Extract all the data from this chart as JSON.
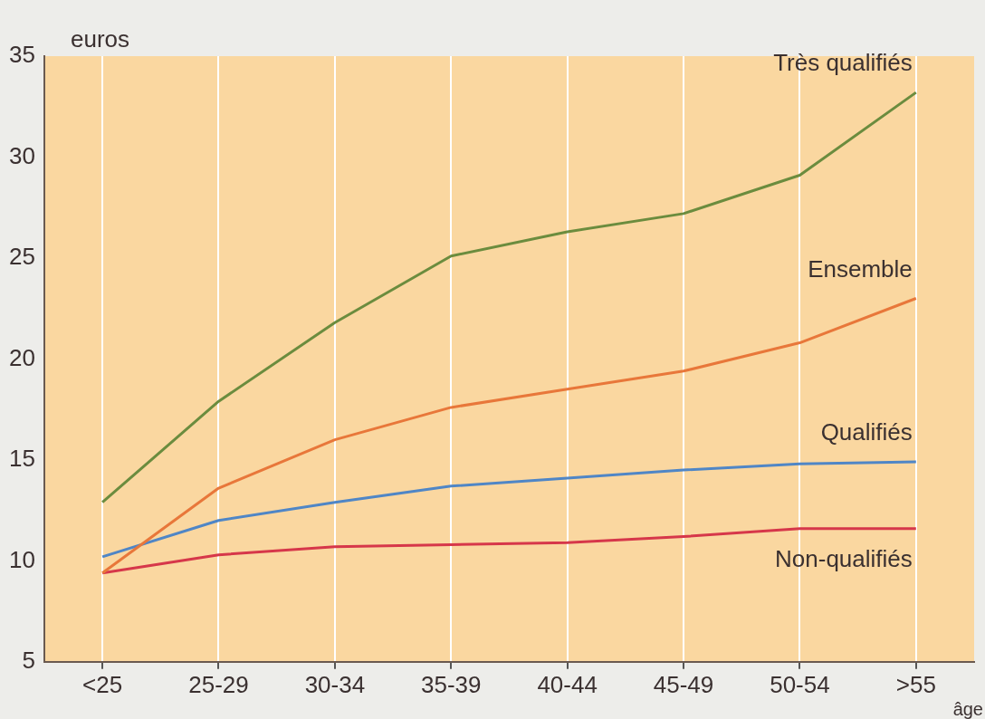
{
  "chart_data": {
    "type": "line",
    "ylabel": "euros",
    "xlabel": "âge",
    "categories": [
      "<25",
      "25-29",
      "30-34",
      "35-39",
      "40-44",
      "45-49",
      "50-54",
      ">55"
    ],
    "series": [
      {
        "name": "Très qualifiés",
        "color": "#6b8c3e",
        "values": [
          12.9,
          17.9,
          21.8,
          25.1,
          26.3,
          27.2,
          29.1,
          33.2
        ]
      },
      {
        "name": "Ensemble",
        "color": "#e8773a",
        "values": [
          9.4,
          13.6,
          16.0,
          17.6,
          18.5,
          19.4,
          20.8,
          23.0
        ]
      },
      {
        "name": "Qualifiés",
        "color": "#4f86c6",
        "values": [
          10.2,
          12.0,
          12.9,
          13.7,
          14.1,
          14.5,
          14.8,
          14.9
        ]
      },
      {
        "name": "Non-qualifiés",
        "color": "#d6374a",
        "values": [
          9.4,
          10.3,
          10.7,
          10.8,
          10.9,
          11.2,
          11.6,
          11.6
        ]
      }
    ],
    "ylim": [
      5,
      35
    ],
    "yticks": [
      5,
      10,
      15,
      20,
      25,
      30,
      35
    ],
    "grid": "x",
    "legend": false,
    "marker": "none",
    "line_style": "solid"
  }
}
